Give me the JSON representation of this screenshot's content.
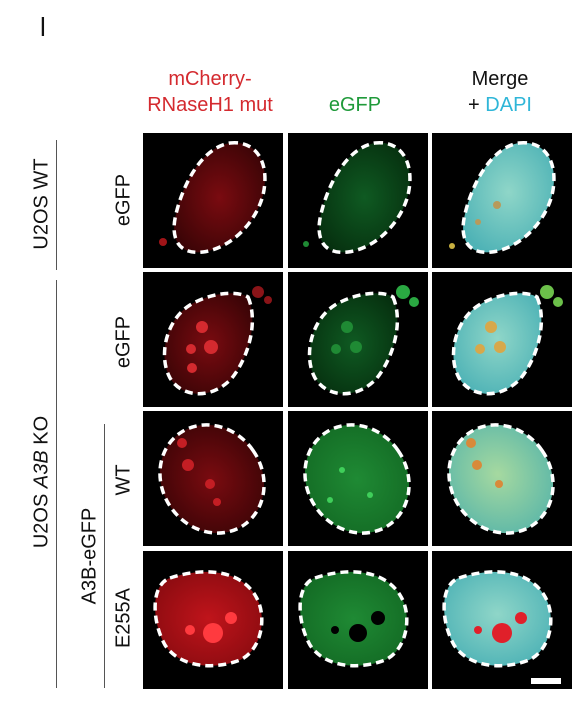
{
  "panel_letter": "l",
  "columns": {
    "c1_line1": "mCherry-",
    "c1_line2": "RNaseH1 mut",
    "c2": "eGFP",
    "c3_line1": "Merge",
    "c3_plus": "+ ",
    "c3_dapi": "DAPI"
  },
  "row_labels": {
    "group1": "U2OS WT",
    "group2_prefix": "U2OS ",
    "group2_gene": "A3B",
    "group2_suffix": " KO",
    "subgroup": "A3B-eGFP",
    "r1": "eGFP",
    "r2": "eGFP",
    "r3": "WT",
    "r4": "E255A"
  },
  "colors": {
    "red": "#d42a2f",
    "green": "#1f9a3a",
    "dapi": "#2fb6d8"
  }
}
